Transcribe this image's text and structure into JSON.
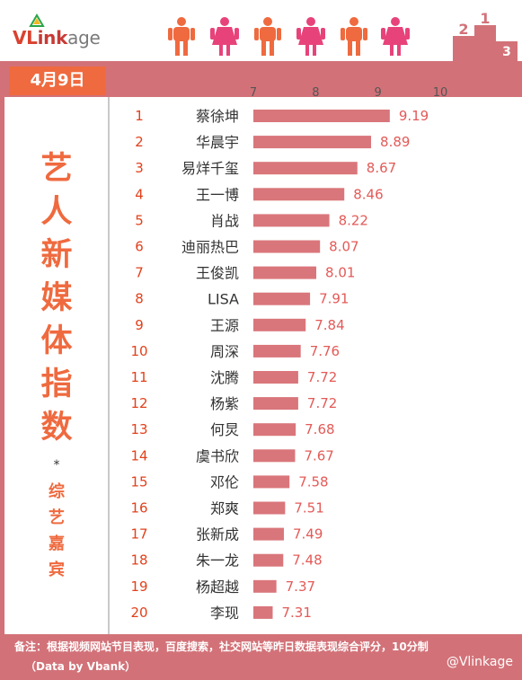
{
  "logo": {
    "part1": "VL",
    "part2": "ink",
    "part3": "age"
  },
  "date": "4月9日",
  "title_chars": [
    "艺",
    "人",
    "新",
    "媒",
    "体",
    "指",
    "数"
  ],
  "asterisk": "*",
  "subtitle_chars": [
    "综",
    "艺",
    "嘉",
    "宾"
  ],
  "note": "备注：根据视频网站节目表现，百度搜索，社交网站等昨日数据表现综合评分，10分制",
  "source": "（Data by Vbank）",
  "watermark": "@Vlinkage",
  "colors": {
    "accent": "#ef6a3f",
    "band": "#d27278",
    "bar": "#d9767b",
    "value": "#e35a57"
  },
  "chart_data": {
    "type": "bar",
    "orientation": "horizontal",
    "xlim": [
      7,
      10
    ],
    "xticks": [
      7,
      8,
      9,
      10
    ],
    "ranks": [
      1,
      2,
      3,
      4,
      5,
      6,
      7,
      8,
      9,
      10,
      11,
      12,
      13,
      14,
      15,
      16,
      17,
      18,
      19,
      20
    ],
    "categories": [
      "蔡徐坤",
      "华晨宇",
      "易烊千玺",
      "王一博",
      "肖战",
      "迪丽热巴",
      "王俊凯",
      "LISA",
      "王源",
      "周深",
      "沈腾",
      "杨紫",
      "何炅",
      "虞书欣",
      "邓伦",
      "郑爽",
      "张新成",
      "朱一龙",
      "杨超越",
      "李现"
    ],
    "values": [
      9.19,
      8.89,
      8.67,
      8.46,
      8.22,
      8.07,
      8.01,
      7.91,
      7.84,
      7.76,
      7.72,
      7.72,
      7.68,
      7.67,
      7.58,
      7.51,
      7.49,
      7.48,
      7.37,
      7.31
    ],
    "value_labels": [
      "9.19",
      "8.89",
      "8.67",
      "8.46",
      "8.22",
      "8.07",
      "8.01",
      "7.91",
      "7.84",
      "7.76",
      "7.72",
      "7.72",
      "7.68",
      "7.67",
      "7.58",
      "7.51",
      "7.49",
      "7.48",
      "7.37",
      "7.31"
    ]
  }
}
